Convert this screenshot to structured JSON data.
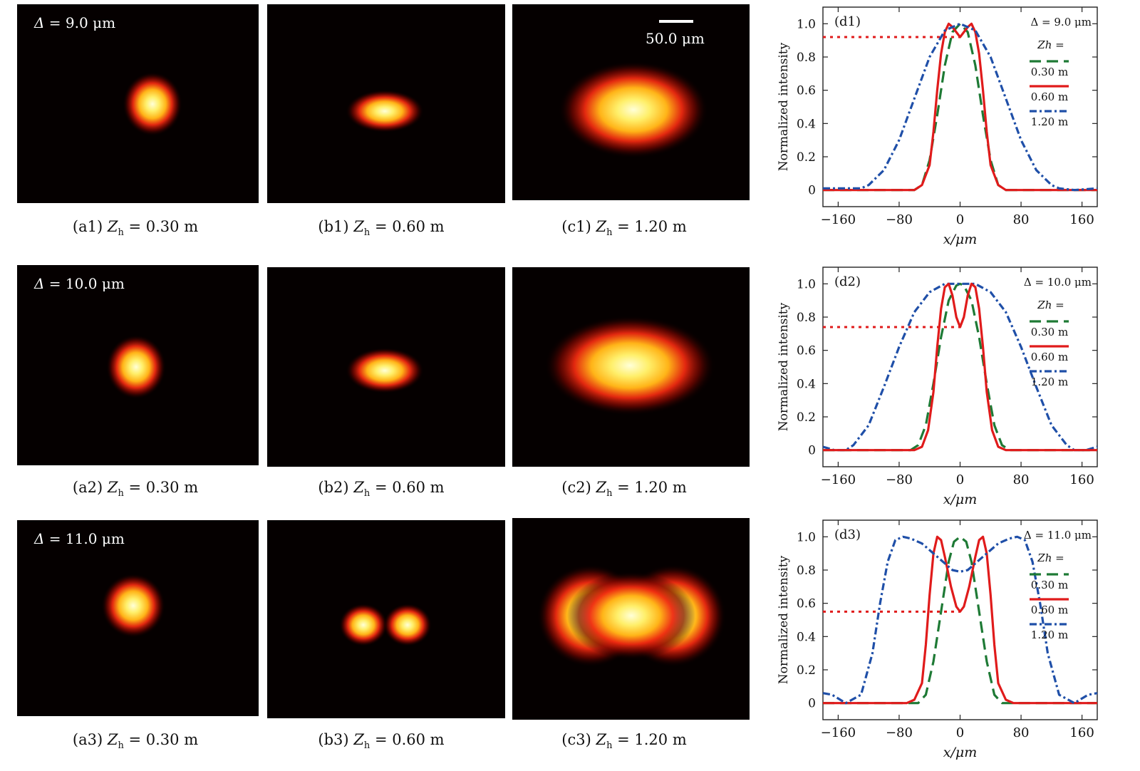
{
  "rows": [
    {
      "delta": {
        "symbol": "Δ",
        "text": " = 9.0 μm"
      },
      "images": [
        {
          "caption_prefix": "(a1)",
          "z_value": " = 0.30 m"
        },
        {
          "caption_prefix": "(b1)",
          "z_value": " = 0.60 m"
        },
        {
          "caption_prefix": "(c1)",
          "z_value": " = 1.20 m"
        }
      ]
    },
    {
      "delta": {
        "symbol": "Δ",
        "text": " = 10.0 μm"
      },
      "images": [
        {
          "caption_prefix": "(a2)",
          "z_value": " = 0.30 m"
        },
        {
          "caption_prefix": "(b2)",
          "z_value": " = 0.60 m"
        },
        {
          "caption_prefix": "(c2)",
          "z_value": " = 1.20 m"
        }
      ]
    },
    {
      "delta": {
        "symbol": "Δ",
        "text": " = 11.0 μm"
      },
      "images": [
        {
          "caption_prefix": "(a3)",
          "z_value": " = 0.30 m"
        },
        {
          "caption_prefix": "(b3)",
          "z_value": " = 0.60 m"
        },
        {
          "caption_prefix": "(c3)",
          "z_value": " = 1.20 m"
        }
      ]
    }
  ],
  "z_symbol": "Z",
  "z_subscript": "h",
  "scale_bar": {
    "label": "50.0 μm"
  },
  "colors": {
    "green": "#1e7a35",
    "red": "#e01b1b",
    "blue": "#1f4fa8",
    "ref_dot": "#e01b1b"
  },
  "chart_data": [
    {
      "type": "line",
      "panel_label": "(d1)",
      "annotation": "Δ = 9.0 μm",
      "legend_title": "Zh =",
      "xlabel": "x/μm",
      "ylabel": "Normalized intensity",
      "xlim": [
        -180,
        180
      ],
      "ylim": [
        -0.1,
        1.1
      ],
      "xticks": [
        -160,
        -80,
        0,
        80,
        160
      ],
      "xticklabels": [
        "−160",
        "−80",
        "0",
        "80",
        "160"
      ],
      "yticks": [
        0,
        0.2,
        0.4,
        0.6,
        0.8,
        1.0
      ],
      "yticklabels": [
        "0",
        "0.2",
        "0.4",
        "0.6",
        "0.8",
        "1.0"
      ],
      "ref_line": {
        "y": 0.92,
        "x_end": 0
      },
      "series": [
        {
          "name": "0.30 m",
          "style": "dash",
          "color": "green",
          "x": [
            -180,
            -60,
            -50,
            -40,
            -30,
            -20,
            -10,
            0,
            10,
            20,
            30,
            40,
            50,
            60,
            180
          ],
          "y": [
            0,
            0,
            0.03,
            0.18,
            0.45,
            0.75,
            0.95,
            1.0,
            0.95,
            0.75,
            0.45,
            0.18,
            0.03,
            0,
            0
          ]
        },
        {
          "name": "0.60 m",
          "style": "solid",
          "color": "red",
          "x": [
            -180,
            -60,
            -50,
            -40,
            -35,
            -30,
            -25,
            -20,
            -15,
            -10,
            0,
            10,
            15,
            20,
            25,
            30,
            35,
            40,
            50,
            60,
            180
          ],
          "y": [
            0,
            0,
            0.03,
            0.15,
            0.35,
            0.6,
            0.82,
            0.95,
            1.0,
            0.98,
            0.92,
            0.98,
            1.0,
            0.95,
            0.82,
            0.6,
            0.35,
            0.15,
            0.03,
            0,
            0
          ]
        },
        {
          "name": "1.20 m",
          "style": "dashdot",
          "color": "blue",
          "x": [
            -180,
            -130,
            -120,
            -100,
            -80,
            -60,
            -40,
            -20,
            0,
            20,
            40,
            60,
            80,
            100,
            120,
            130,
            150,
            180
          ],
          "y": [
            0.01,
            0.01,
            0.03,
            0.12,
            0.3,
            0.55,
            0.8,
            0.96,
            1.0,
            0.96,
            0.8,
            0.55,
            0.3,
            0.12,
            0.03,
            0.01,
            0.0,
            0.01
          ]
        }
      ]
    },
    {
      "type": "line",
      "panel_label": "(d2)",
      "annotation": "Δ = 10.0 μm",
      "legend_title": "Zh =",
      "xlabel": "x/μm",
      "ylabel": "Normalized intensity",
      "xlim": [
        -180,
        180
      ],
      "ylim": [
        -0.1,
        1.1
      ],
      "xticks": [
        -160,
        -80,
        0,
        80,
        160
      ],
      "xticklabels": [
        "−160",
        "−80",
        "0",
        "80",
        "160"
      ],
      "yticks": [
        0,
        0.2,
        0.4,
        0.6,
        0.8,
        1.0
      ],
      "yticklabels": [
        "0",
        "0.2",
        "0.4",
        "0.6",
        "0.8",
        "1.0"
      ],
      "ref_line": {
        "y": 0.74,
        "x_end": 0
      },
      "series": [
        {
          "name": "0.30 m",
          "style": "dash",
          "color": "green",
          "x": [
            -180,
            -65,
            -55,
            -45,
            -35,
            -25,
            -15,
            -5,
            0,
            5,
            15,
            25,
            35,
            45,
            55,
            65,
            180
          ],
          "y": [
            0,
            0,
            0.03,
            0.15,
            0.4,
            0.68,
            0.9,
            0.99,
            1.0,
            0.99,
            0.9,
            0.68,
            0.4,
            0.15,
            0.03,
            0,
            0
          ]
        },
        {
          "name": "1.20 m",
          "style": "dashdot",
          "color": "blue",
          "x": [
            -180,
            -165,
            -150,
            -140,
            -120,
            -100,
            -80,
            -60,
            -40,
            -20,
            0,
            20,
            40,
            60,
            80,
            100,
            120,
            140,
            150,
            165,
            180
          ],
          "y": [
            0.02,
            0.0,
            0.0,
            0.03,
            0.15,
            0.38,
            0.62,
            0.83,
            0.95,
            1.0,
            1.0,
            1.0,
            0.95,
            0.83,
            0.62,
            0.38,
            0.15,
            0.03,
            0.0,
            0.0,
            0.02
          ]
        },
        {
          "name": "0.60 m",
          "style": "solid",
          "color": "red",
          "x": [
            -180,
            -60,
            -50,
            -42,
            -35,
            -30,
            -25,
            -20,
            -15,
            -10,
            -5,
            0,
            5,
            10,
            15,
            20,
            25,
            30,
            35,
            42,
            50,
            60,
            180
          ],
          "y": [
            0,
            0,
            0.02,
            0.12,
            0.35,
            0.62,
            0.85,
            0.98,
            1.0,
            0.93,
            0.8,
            0.74,
            0.8,
            0.93,
            1.0,
            0.98,
            0.85,
            0.62,
            0.35,
            0.12,
            0.02,
            0,
            0
          ]
        }
      ]
    },
    {
      "type": "line",
      "panel_label": "(d3)",
      "annotation": "Δ = 11.0 μm",
      "legend_title": "Zh =",
      "xlabel": "x/μm",
      "ylabel": "Normalized intensity",
      "xlim": [
        -180,
        180
      ],
      "ylim": [
        -0.1,
        1.1
      ],
      "xticks": [
        -160,
        -80,
        0,
        80,
        160
      ],
      "xticklabels": [
        "−160",
        "−80",
        "0",
        "80",
        "160"
      ],
      "yticks": [
        0,
        0.2,
        0.4,
        0.6,
        0.8,
        1.0
      ],
      "yticklabels": [
        "0",
        "0.2",
        "0.4",
        "0.6",
        "0.8",
        "1.0"
      ],
      "ref_line": {
        "y": 0.55,
        "x_end": 0
      },
      "series": [
        {
          "name": "0.30 m",
          "style": "dash",
          "color": "green",
          "x": [
            -180,
            -55,
            -45,
            -35,
            -25,
            -15,
            -8,
            0,
            8,
            15,
            25,
            35,
            45,
            55,
            180
          ],
          "y": [
            0,
            0,
            0.05,
            0.25,
            0.55,
            0.85,
            0.97,
            1.0,
            0.97,
            0.85,
            0.55,
            0.25,
            0.05,
            0,
            0
          ]
        },
        {
          "name": "0.60 m",
          "style": "solid",
          "color": "red",
          "x": [
            -180,
            -70,
            -60,
            -50,
            -45,
            -40,
            -35,
            -30,
            -25,
            -20,
            -12,
            -5,
            0,
            5,
            12,
            20,
            25,
            30,
            35,
            40,
            45,
            50,
            60,
            70,
            180
          ],
          "y": [
            0,
            0,
            0.02,
            0.12,
            0.35,
            0.65,
            0.9,
            1.0,
            0.98,
            0.88,
            0.7,
            0.58,
            0.55,
            0.58,
            0.7,
            0.88,
            0.98,
            1.0,
            0.9,
            0.65,
            0.35,
            0.12,
            0.02,
            0,
            0
          ]
        },
        {
          "name": "1.20 m",
          "style": "dashdot",
          "color": "blue",
          "x": [
            -180,
            -168,
            -150,
            -130,
            -115,
            -105,
            -95,
            -85,
            -75,
            -65,
            -50,
            -30,
            -10,
            0,
            10,
            30,
            50,
            65,
            75,
            85,
            95,
            105,
            115,
            130,
            150,
            168,
            180
          ],
          "y": [
            0.06,
            0.05,
            0.0,
            0.05,
            0.3,
            0.6,
            0.85,
            0.98,
            1.0,
            0.99,
            0.96,
            0.88,
            0.8,
            0.79,
            0.8,
            0.88,
            0.96,
            0.99,
            1.0,
            0.98,
            0.85,
            0.6,
            0.3,
            0.05,
            0.0,
            0.05,
            0.06
          ]
        }
      ]
    }
  ]
}
